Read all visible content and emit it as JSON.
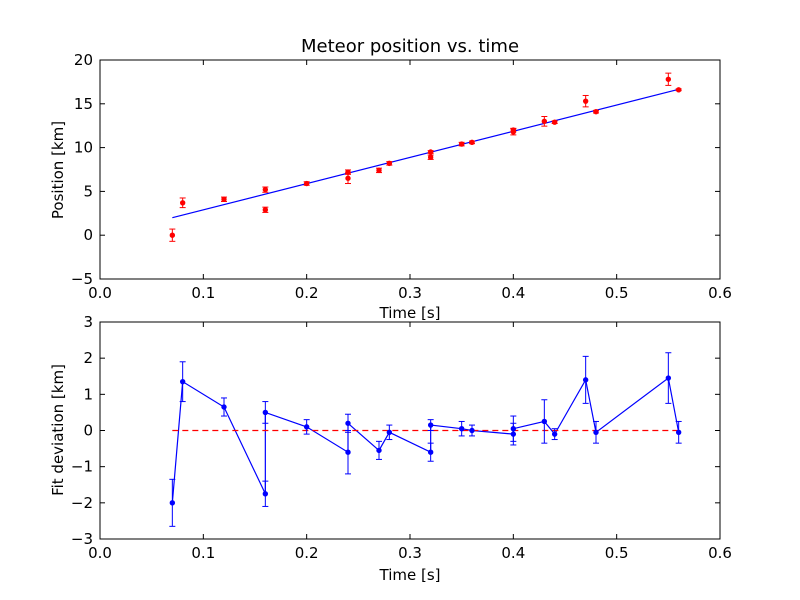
{
  "chart_data": [
    {
      "type": "scatter",
      "title": "Meteor position vs. time",
      "xlabel": "Time [s]",
      "ylabel": "Position [km]",
      "xlim": [
        0.0,
        0.6
      ],
      "ylim": [
        -5,
        20
      ],
      "xticks": [
        "0.0",
        "0.1",
        "0.2",
        "0.3",
        "0.4",
        "0.5",
        "0.6"
      ],
      "yticks": [
        "−5",
        "0",
        "5",
        "10",
        "15",
        "20"
      ],
      "grid": false,
      "colors": {
        "points": "#ff0000",
        "fit": "#0000ff"
      },
      "series": [
        {
          "kind": "errorbar-points",
          "x": [
            0.07,
            0.08,
            0.12,
            0.16,
            0.16,
            0.2,
            0.24,
            0.24,
            0.27,
            0.28,
            0.32,
            0.32,
            0.35,
            0.36,
            0.4,
            0.4,
            0.43,
            0.44,
            0.47,
            0.48,
            0.55,
            0.56
          ],
          "y": [
            0.0,
            3.7,
            4.1,
            5.2,
            2.9,
            5.9,
            6.5,
            7.2,
            7.4,
            8.2,
            8.9,
            9.5,
            10.4,
            10.6,
            11.8,
            12.0,
            13.0,
            12.9,
            15.3,
            14.1,
            17.8,
            16.6
          ],
          "err": [
            0.7,
            0.55,
            0.25,
            0.3,
            0.3,
            0.2,
            0.6,
            0.25,
            0.25,
            0.2,
            0.25,
            0.15,
            0.2,
            0.15,
            0.35,
            0.2,
            0.55,
            0.15,
            0.65,
            0.15,
            0.7,
            0.1
          ]
        },
        {
          "kind": "fit-line",
          "x": [
            0.07,
            0.56
          ],
          "y": [
            2.0,
            16.65
          ]
        }
      ]
    },
    {
      "type": "line",
      "title": "",
      "xlabel": "Time [s]",
      "ylabel": "Fit deviation [km]",
      "xlim": [
        0.0,
        0.6
      ],
      "ylim": [
        -3,
        3
      ],
      "xticks": [
        "0.0",
        "0.1",
        "0.2",
        "0.3",
        "0.4",
        "0.5",
        "0.6"
      ],
      "yticks": [
        "−3",
        "−2",
        "−1",
        "0",
        "1",
        "2",
        "3"
      ],
      "grid": false,
      "colors": {
        "deviation": "#0000ff",
        "zero": "#ff0000"
      },
      "series": [
        {
          "kind": "errorbar-line",
          "x": [
            0.07,
            0.08,
            0.12,
            0.16,
            0.16,
            0.2,
            0.24,
            0.24,
            0.27,
            0.28,
            0.32,
            0.32,
            0.35,
            0.36,
            0.4,
            0.4,
            0.43,
            0.44,
            0.47,
            0.48,
            0.55,
            0.56
          ],
          "y": [
            -2.0,
            1.35,
            0.65,
            -1.75,
            0.5,
            0.1,
            -0.6,
            0.2,
            -0.55,
            -0.05,
            -0.6,
            0.15,
            0.05,
            0.0,
            -0.1,
            0.05,
            0.25,
            -0.1,
            1.4,
            -0.05,
            1.45,
            -0.05
          ],
          "err": [
            0.65,
            0.55,
            0.25,
            0.35,
            0.3,
            0.2,
            0.6,
            0.25,
            0.25,
            0.2,
            0.25,
            0.15,
            0.2,
            0.15,
            0.3,
            0.35,
            0.6,
            0.15,
            0.65,
            0.3,
            0.7,
            0.3
          ]
        },
        {
          "kind": "zero-line",
          "x": [
            0.07,
            0.56
          ],
          "y": [
            0,
            0
          ]
        }
      ]
    }
  ]
}
